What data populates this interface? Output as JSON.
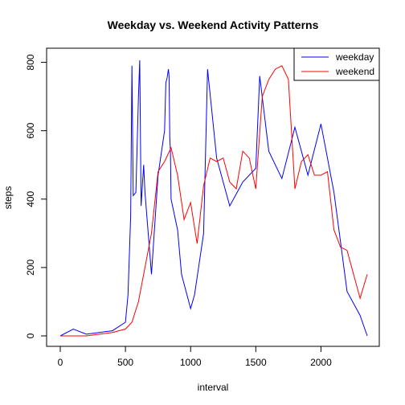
{
  "chart_data": {
    "type": "line",
    "title": "Weekday vs. Weekend Activity Patterns",
    "xlabel": "interval",
    "ylabel": "steps",
    "xlim": [
      0,
      2355
    ],
    "ylim": [
      0,
      806
    ],
    "x_ticks": [
      0,
      500,
      1000,
      1500,
      2000
    ],
    "y_ticks": [
      0,
      200,
      400,
      600,
      800
    ],
    "legend_position": "top-right",
    "grid": false,
    "series": [
      {
        "name": "weekday",
        "color": "#0000FF",
        "x": [
          0,
          100,
          200,
          300,
          400,
          500,
          520,
          540,
          550,
          560,
          580,
          600,
          610,
          620,
          640,
          650,
          700,
          750,
          800,
          810,
          820,
          830,
          835,
          840,
          845,
          850,
          900,
          930,
          1000,
          1030,
          1100,
          1130,
          1200,
          1300,
          1400,
          1500,
          1530,
          1600,
          1700,
          1800,
          1900,
          2000,
          2100,
          2200,
          2300,
          2355
        ],
        "values": [
          0,
          20,
          5,
          10,
          15,
          40,
          120,
          350,
          790,
          410,
          420,
          700,
          806,
          380,
          500,
          420,
          180,
          470,
          600,
          740,
          755,
          780,
          760,
          580,
          540,
          400,
          310,
          180,
          80,
          120,
          300,
          780,
          520,
          380,
          450,
          490,
          760,
          540,
          460,
          610,
          470,
          620,
          420,
          130,
          60,
          0
        ]
      },
      {
        "name": "weekend",
        "color": "#FF0000",
        "x": [
          0,
          100,
          200,
          300,
          400,
          500,
          550,
          600,
          700,
          750,
          800,
          850,
          900,
          950,
          1000,
          1050,
          1100,
          1150,
          1200,
          1250,
          1300,
          1350,
          1400,
          1450,
          1500,
          1550,
          1600,
          1650,
          1700,
          1750,
          1800,
          1850,
          1900,
          1950,
          2000,
          2050,
          2100,
          2150,
          2200,
          2300,
          2355
        ],
        "values": [
          0,
          0,
          0,
          5,
          10,
          20,
          40,
          100,
          300,
          480,
          510,
          550,
          470,
          340,
          390,
          270,
          440,
          520,
          510,
          520,
          450,
          430,
          540,
          520,
          430,
          700,
          750,
          780,
          790,
          750,
          430,
          510,
          530,
          470,
          470,
          480,
          310,
          260,
          250,
          110,
          180
        ]
      }
    ]
  }
}
